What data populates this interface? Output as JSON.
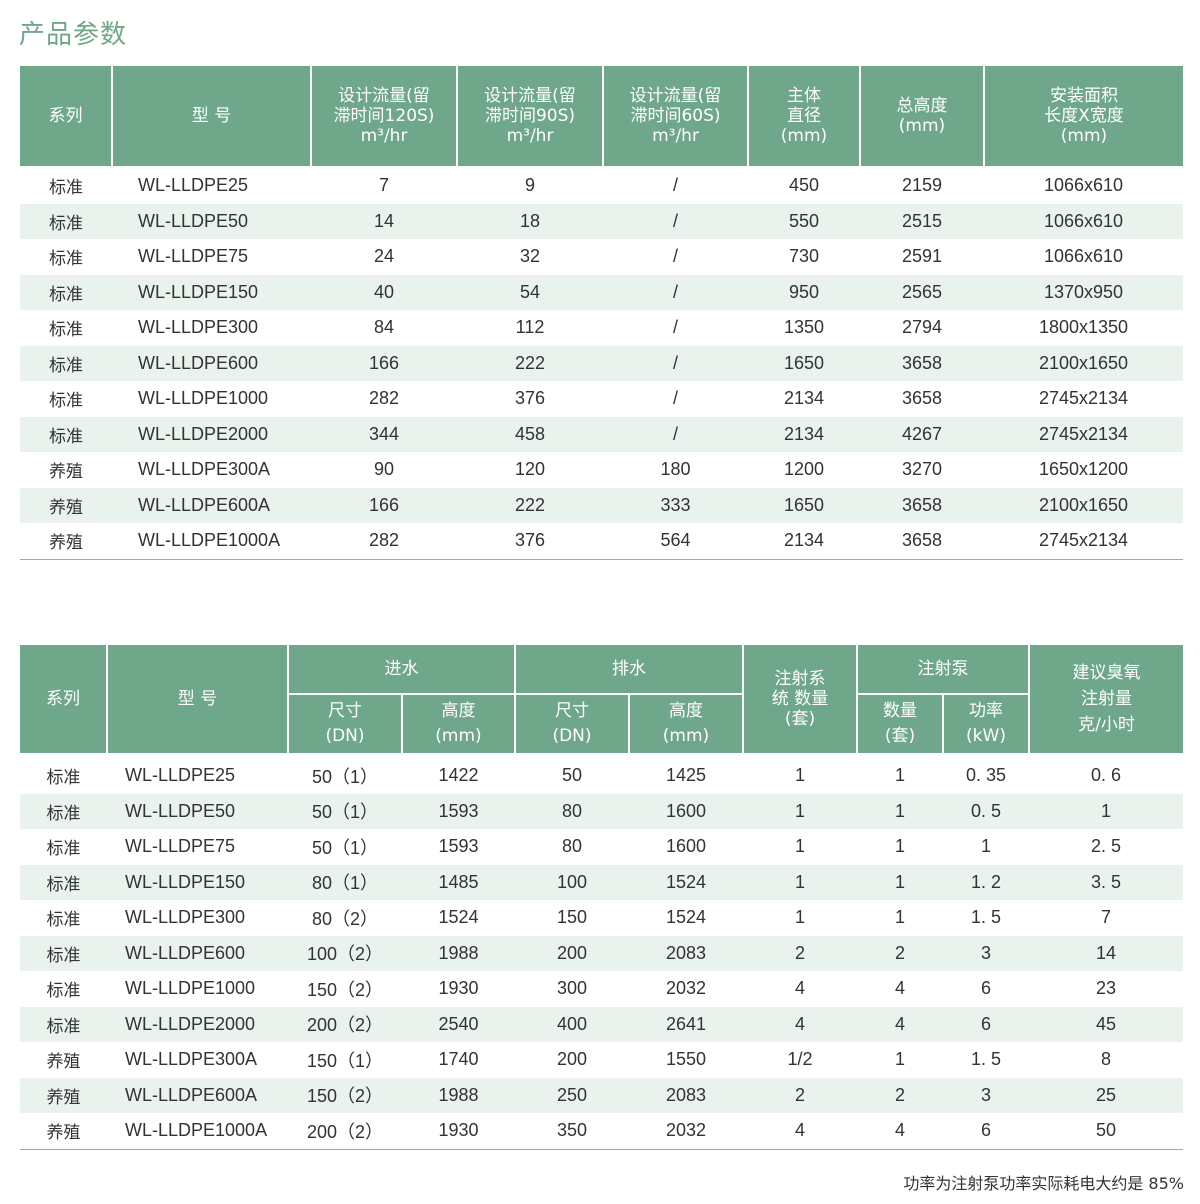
{
  "title": "产品参数",
  "table1": {
    "headers": [
      "系列",
      "型 号",
      "设计流量(留\n滞时间120S)\nm³/hr",
      "设计流量(留\n滞时间90S)\nm³/hr",
      "设计流量(留\n滞时间60S)\nm³/hr",
      "主体\n直径\n(mm)",
      "总高度\n(mm)",
      "安装面积\n长度X宽度\n(mm)"
    ],
    "rows": [
      [
        "标准",
        "WL-LLDPE25",
        "7",
        "9",
        "/",
        "450",
        "2159",
        "1066x610"
      ],
      [
        "标准",
        "WL-LLDPE50",
        "14",
        "18",
        "/",
        "550",
        "2515",
        "1066x610"
      ],
      [
        "标准",
        "WL-LLDPE75",
        "24",
        "32",
        "/",
        "730",
        "2591",
        "1066x610"
      ],
      [
        "标准",
        "WL-LLDPE150",
        "40",
        "54",
        "/",
        "950",
        "2565",
        "1370x950"
      ],
      [
        "标准",
        "WL-LLDPE300",
        "84",
        "112",
        "/",
        "1350",
        "2794",
        "1800x1350"
      ],
      [
        "标准",
        "WL-LLDPE600",
        "166",
        "222",
        "/",
        "1650",
        "3658",
        "2100x1650"
      ],
      [
        "标准",
        "WL-LLDPE1000",
        "282",
        "376",
        "/",
        "2134",
        "3658",
        "2745x2134"
      ],
      [
        "标准",
        "WL-LLDPE2000",
        "344",
        "458",
        "/",
        "2134",
        "4267",
        "2745x2134"
      ],
      [
        "养殖",
        "WL-LLDPE300A",
        "90",
        "120",
        "180",
        "1200",
        "3270",
        "1650x1200"
      ],
      [
        "养殖",
        "WL-LLDPE600A",
        "166",
        "222",
        "333",
        "1650",
        "3658",
        "2100x1650"
      ],
      [
        "养殖",
        "WL-LLDPE1000A",
        "282",
        "376",
        "564",
        "2134",
        "3658",
        "2745x2134"
      ]
    ]
  },
  "table2": {
    "group_headers": {
      "series": "系列",
      "model": "型 号",
      "inlet": "进水",
      "outlet": "排水",
      "inj_sys": "注射系\n统 数量\n(套)",
      "pump": "注射泵",
      "ozone": "建议臭氧\n注射量\n克/小时"
    },
    "sub_headers": [
      "尺寸\n(DN)",
      "高度\n(mm)",
      "尺寸\n(DN)",
      "高度\n(mm)",
      "数量\n(套)",
      "功率\n(kW)"
    ],
    "rows": [
      [
        "标准",
        "WL-LLDPE25",
        "50（1）",
        "1422",
        "50",
        "1425",
        "1",
        "1",
        "0. 35",
        "0. 6"
      ],
      [
        "标准",
        "WL-LLDPE50",
        "50（1）",
        "1593",
        "80",
        "1600",
        "1",
        "1",
        "0. 5",
        "1"
      ],
      [
        "标准",
        "WL-LLDPE75",
        "50（1）",
        "1593",
        "80",
        "1600",
        "1",
        "1",
        "1",
        "2. 5"
      ],
      [
        "标准",
        "WL-LLDPE150",
        "80（1）",
        "1485",
        "100",
        "1524",
        "1",
        "1",
        "1. 2",
        "3. 5"
      ],
      [
        "标准",
        "WL-LLDPE300",
        "80（2）",
        "1524",
        "150",
        "1524",
        "1",
        "1",
        "1. 5",
        "7"
      ],
      [
        "标准",
        "WL-LLDPE600",
        "100（2）",
        "1988",
        "200",
        "2083",
        "2",
        "2",
        "3",
        "14"
      ],
      [
        "标准",
        "WL-LLDPE1000",
        "150（2）",
        "1930",
        "300",
        "2032",
        "4",
        "4",
        "6",
        "23"
      ],
      [
        "标准",
        "WL-LLDPE2000",
        "200（2）",
        "2540",
        "400",
        "2641",
        "4",
        "4",
        "6",
        "45"
      ],
      [
        "养殖",
        "WL-LLDPE300A",
        "150（1）",
        "1740",
        "200",
        "1550",
        "1/2",
        "1",
        "1. 5",
        "8"
      ],
      [
        "养殖",
        "WL-LLDPE600A",
        "150（2）",
        "1988",
        "250",
        "2083",
        "2",
        "2",
        "3",
        "25"
      ],
      [
        "养殖",
        "WL-LLDPE1000A",
        "200（2）",
        "1930",
        "350",
        "2032",
        "4",
        "4",
        "6",
        "50"
      ]
    ]
  },
  "note": "功率为注射泵功率实际耗电大约是 85%",
  "colors": {
    "header": "#6fa78a",
    "stripe": "#e9f2ec",
    "title": "#6fa78a"
  }
}
